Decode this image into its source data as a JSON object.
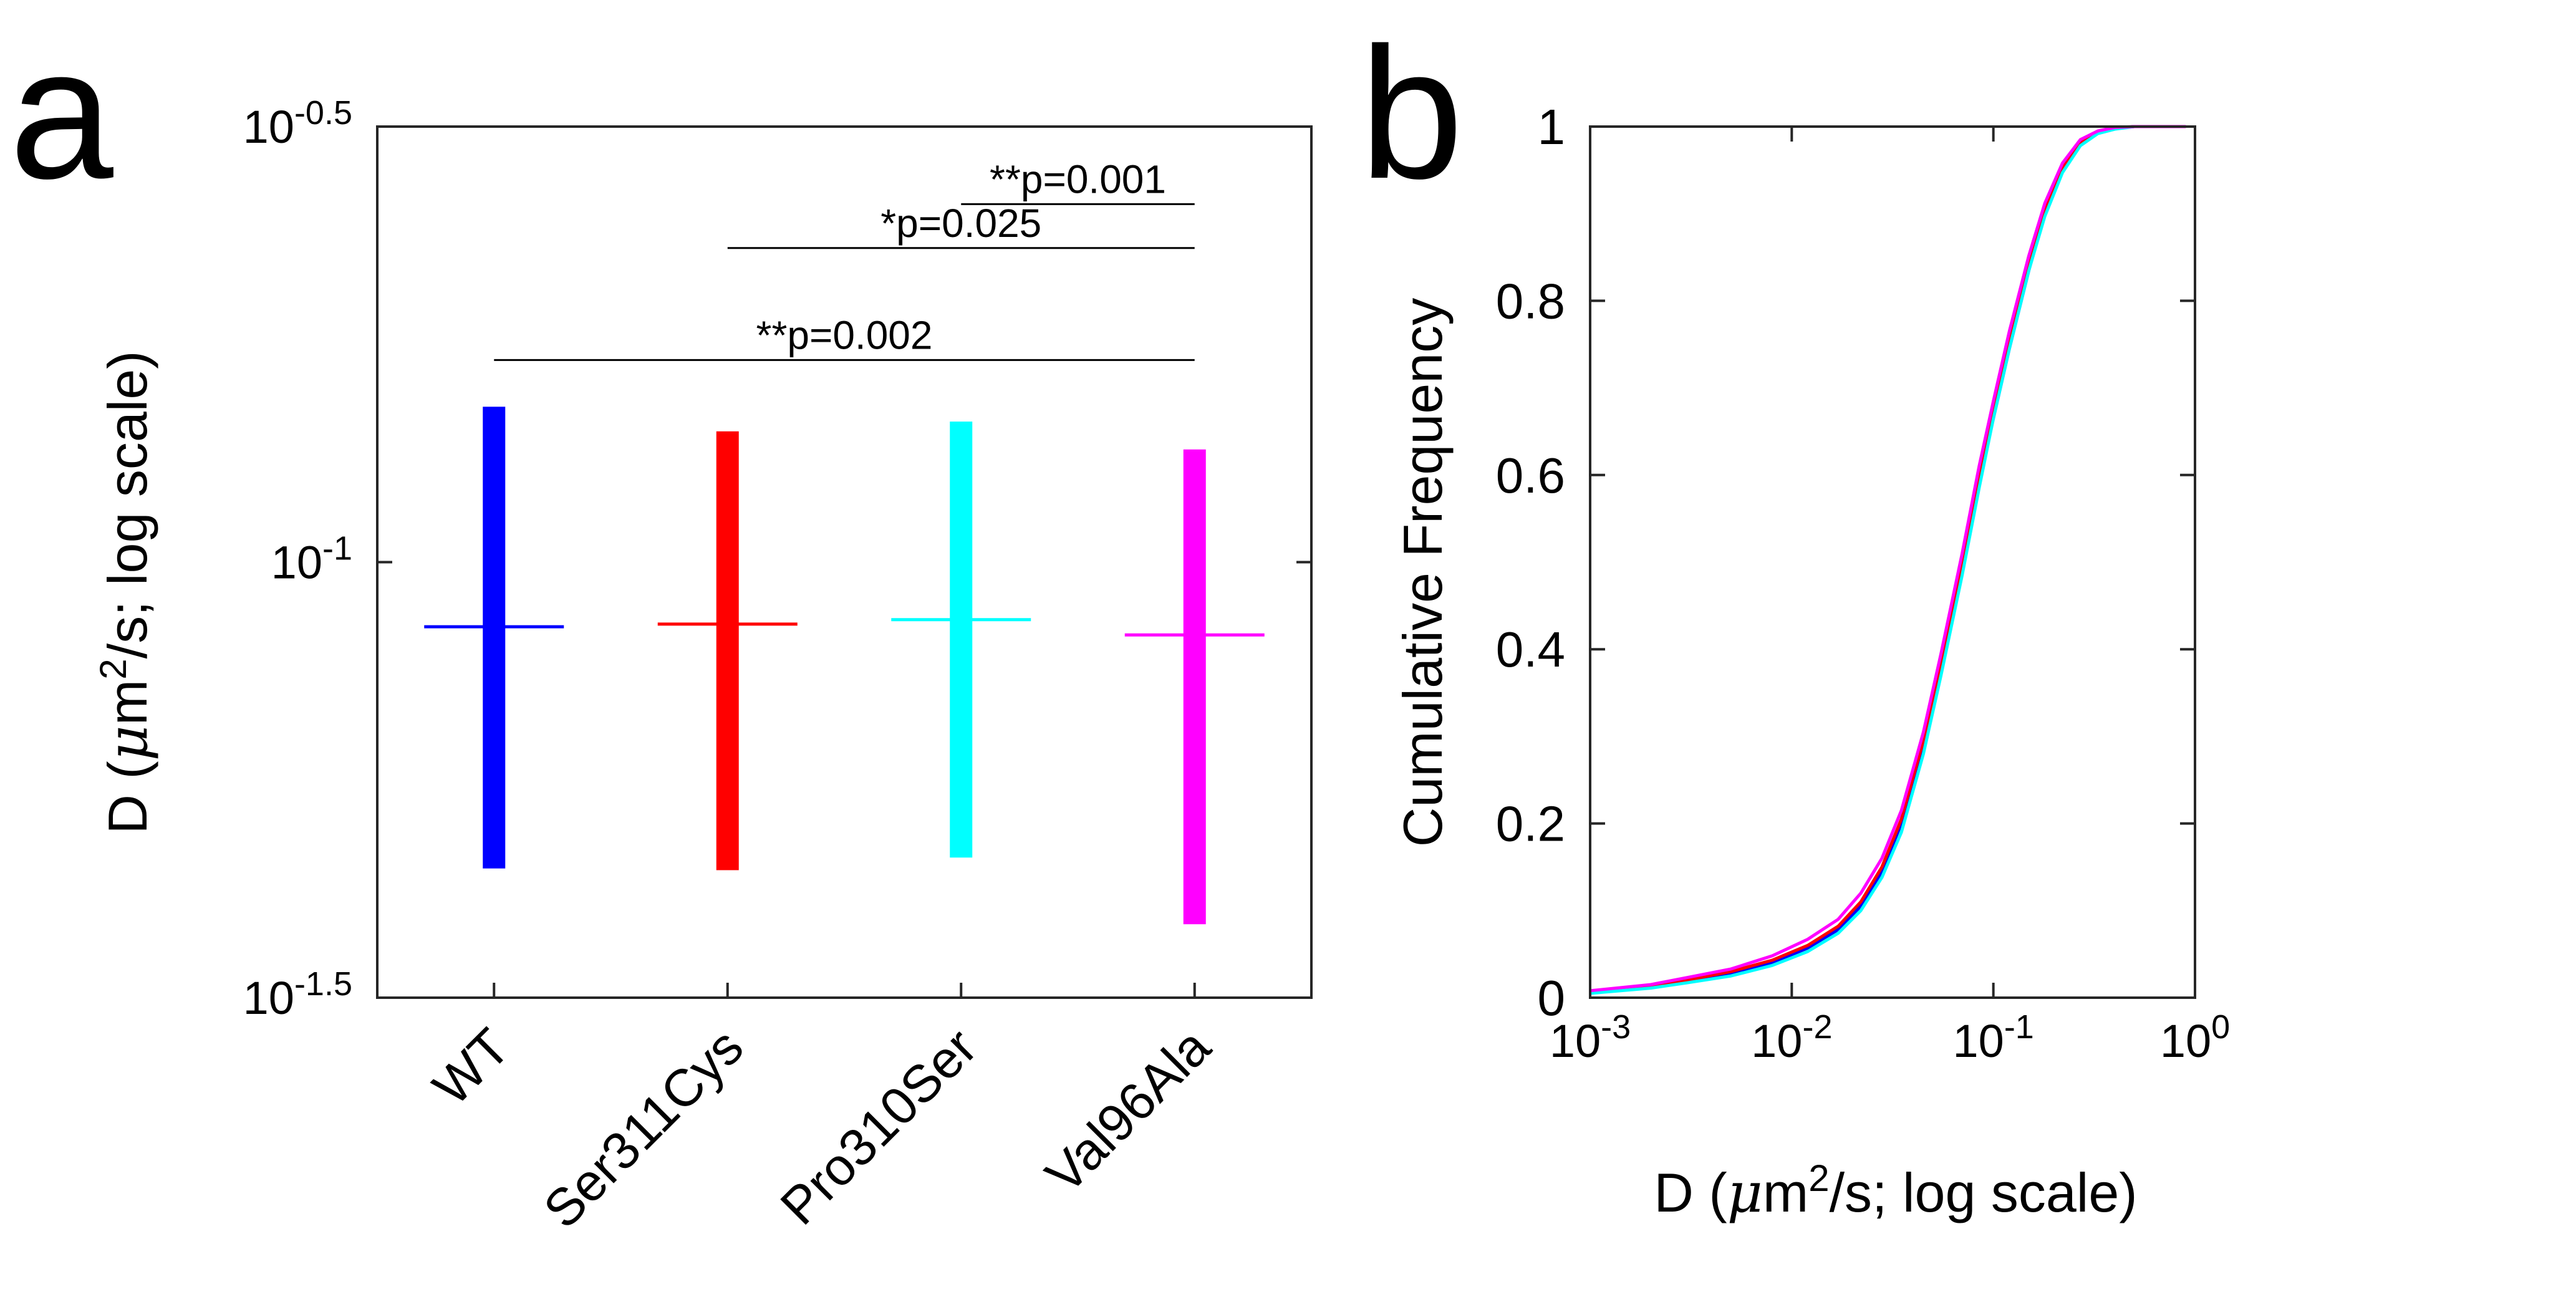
{
  "panels": {
    "a": "a",
    "b": "b"
  },
  "colors": {
    "axis": "#262626",
    "text": "#000000"
  },
  "chart_data": [
    {
      "id": "a",
      "type": "range-bar",
      "yscale": "log",
      "ylim": [
        0.031623,
        0.316228
      ],
      "yticks": [
        {
          "value": 0.316228,
          "base": "10",
          "exp": "-0.5"
        },
        {
          "value": 0.1,
          "base": "10",
          "exp": "-1"
        },
        {
          "value": 0.031623,
          "base": "10",
          "exp": "-1.5"
        }
      ],
      "ylabel": {
        "pre": "D (",
        "mu": "μ",
        "post": "m",
        "sup": "2",
        "tail": "/s; log scale)"
      },
      "xlabel": "",
      "grid": false,
      "categories": [
        "WT",
        "Ser311Cys",
        "Pro310Ser",
        "Val96Ala"
      ],
      "series": [
        {
          "name": "WT",
          "color": "#0000ff",
          "low": 0.0445,
          "high": 0.1508,
          "median": 0.0843
        },
        {
          "name": "Ser311Cys",
          "color": "#ff0000",
          "low": 0.0443,
          "high": 0.1413,
          "median": 0.0849
        },
        {
          "name": "Pro310Ser",
          "color": "#00ffff",
          "low": 0.0458,
          "high": 0.145,
          "median": 0.0859
        },
        {
          "name": "Val96Ala",
          "color": "#ff00ff",
          "low": 0.0384,
          "high": 0.1347,
          "median": 0.0825
        }
      ],
      "significance": [
        {
          "from": "WT",
          "to": "Val96Ala",
          "label": "**p=0.002",
          "level": 0.1706
        },
        {
          "from": "Ser311Cys",
          "to": "Val96Ala",
          "label": "*p=0.025",
          "level": 0.2294
        },
        {
          "from": "Pro310Ser",
          "to": "Val96Ala",
          "label": "**p=0.001",
          "level": 0.2576
        }
      ]
    },
    {
      "id": "b",
      "type": "line",
      "xscale": "log",
      "xlim": [
        0.001,
        1
      ],
      "ylim": [
        0,
        1
      ],
      "xticks": [
        {
          "value": 0.001,
          "base": "10",
          "exp": "-3"
        },
        {
          "value": 0.01,
          "base": "10",
          "exp": "-2"
        },
        {
          "value": 0.1,
          "base": "10",
          "exp": "-1"
        },
        {
          "value": 1,
          "base": "10",
          "exp": "0"
        }
      ],
      "yticks": [
        {
          "value": 0,
          "label": "0"
        },
        {
          "value": 0.2,
          "label": "0.2"
        },
        {
          "value": 0.4,
          "label": "0.4"
        },
        {
          "value": 0.6,
          "label": "0.6"
        },
        {
          "value": 0.8,
          "label": "0.8"
        },
        {
          "value": 1,
          "label": "1"
        }
      ],
      "xlabel": {
        "pre": "D (",
        "mu": "μ",
        "post": "m",
        "sup": "2",
        "tail": "/s; log scale)"
      },
      "ylabel": "Cumulative Frequency",
      "grid": false,
      "series": [
        {
          "name": "WT",
          "color": "#0000ff",
          "x": [
            0.001,
            0.002,
            0.003,
            0.005,
            0.008,
            0.012,
            0.017,
            0.022,
            0.028,
            0.035,
            0.045,
            0.055,
            0.07,
            0.085,
            0.1,
            0.12,
            0.15,
            0.18,
            0.22,
            0.27,
            0.33,
            0.4,
            0.5,
            0.7,
            0.9
          ],
          "y": [
            0.006,
            0.012,
            0.018,
            0.027,
            0.04,
            0.057,
            0.078,
            0.105,
            0.145,
            0.2,
            0.29,
            0.375,
            0.49,
            0.59,
            0.665,
            0.745,
            0.835,
            0.9,
            0.95,
            0.98,
            0.993,
            0.998,
            1.0,
            1.0,
            1.0
          ]
        },
        {
          "name": "Ser311Cys",
          "color": "#ff0000",
          "x": [
            0.001,
            0.002,
            0.003,
            0.005,
            0.008,
            0.012,
            0.017,
            0.022,
            0.028,
            0.035,
            0.045,
            0.055,
            0.07,
            0.085,
            0.1,
            0.12,
            0.15,
            0.18,
            0.22,
            0.27,
            0.33,
            0.4,
            0.5,
            0.7,
            0.9
          ],
          "y": [
            0.007,
            0.013,
            0.02,
            0.03,
            0.043,
            0.06,
            0.082,
            0.11,
            0.15,
            0.205,
            0.295,
            0.385,
            0.5,
            0.6,
            0.675,
            0.755,
            0.843,
            0.905,
            0.953,
            0.982,
            0.994,
            0.998,
            1.0,
            1.0,
            1.0
          ]
        },
        {
          "name": "Pro310Ser",
          "color": "#00ffff",
          "x": [
            0.001,
            0.002,
            0.003,
            0.005,
            0.008,
            0.012,
            0.017,
            0.022,
            0.028,
            0.035,
            0.045,
            0.055,
            0.07,
            0.085,
            0.1,
            0.12,
            0.15,
            0.18,
            0.22,
            0.27,
            0.33,
            0.4,
            0.5,
            0.7,
            0.9
          ],
          "y": [
            0.005,
            0.011,
            0.017,
            0.025,
            0.037,
            0.053,
            0.074,
            0.1,
            0.138,
            0.19,
            0.28,
            0.37,
            0.485,
            0.585,
            0.665,
            0.745,
            0.835,
            0.897,
            0.947,
            0.978,
            0.992,
            0.997,
            1.0,
            1.0,
            1.0
          ]
        },
        {
          "name": "Val96Ala",
          "color": "#ff00ff",
          "x": [
            0.001,
            0.002,
            0.003,
            0.005,
            0.008,
            0.012,
            0.017,
            0.022,
            0.028,
            0.035,
            0.045,
            0.055,
            0.07,
            0.085,
            0.1,
            0.12,
            0.15,
            0.18,
            0.22,
            0.27,
            0.33,
            0.4,
            0.5,
            0.7,
            0.9
          ],
          "y": [
            0.008,
            0.015,
            0.023,
            0.033,
            0.048,
            0.067,
            0.09,
            0.12,
            0.16,
            0.215,
            0.305,
            0.395,
            0.51,
            0.61,
            0.685,
            0.765,
            0.852,
            0.912,
            0.958,
            0.985,
            0.995,
            0.999,
            1.0,
            1.0,
            1.0
          ]
        }
      ]
    }
  ]
}
